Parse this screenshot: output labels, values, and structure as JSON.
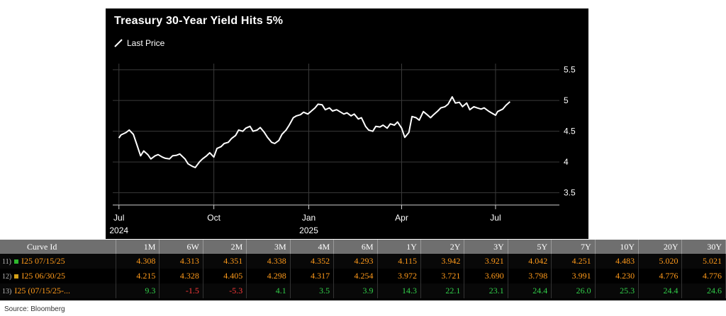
{
  "chart_data": {
    "type": "line",
    "title": "Treasury 30-Year Yield Hits 5%",
    "series": [
      {
        "name": "Last Price",
        "color": "#ffffff",
        "x": [
          "2024-07-01",
          "2024-07-03",
          "2024-07-08",
          "2024-07-11",
          "2024-07-15",
          "2024-07-18",
          "2024-07-22",
          "2024-07-25",
          "2024-07-29",
          "2024-08-01",
          "2024-08-05",
          "2024-08-08",
          "2024-08-12",
          "2024-08-15",
          "2024-08-19",
          "2024-08-22",
          "2024-08-26",
          "2024-08-29",
          "2024-09-03",
          "2024-09-06",
          "2024-09-10",
          "2024-09-13",
          "2024-09-17",
          "2024-09-20",
          "2024-09-24",
          "2024-09-27",
          "2024-10-01",
          "2024-10-04",
          "2024-10-08",
          "2024-10-11",
          "2024-10-15",
          "2024-10-18",
          "2024-10-22",
          "2024-10-25",
          "2024-10-29",
          "2024-11-01",
          "2024-11-05",
          "2024-11-08",
          "2024-11-12",
          "2024-11-15",
          "2024-11-19",
          "2024-11-22",
          "2024-11-26",
          "2024-11-29",
          "2024-12-03",
          "2024-12-06",
          "2024-12-10",
          "2024-12-13",
          "2024-12-17",
          "2024-12-20",
          "2024-12-24",
          "2024-12-27",
          "2024-12-31",
          "2025-01-03",
          "2025-01-07",
          "2025-01-10",
          "2025-01-14",
          "2025-01-17",
          "2025-01-21",
          "2025-01-24",
          "2025-01-28",
          "2025-01-31",
          "2025-02-04",
          "2025-02-07",
          "2025-02-11",
          "2025-02-14",
          "2025-02-18",
          "2025-02-21",
          "2025-02-25",
          "2025-02-28",
          "2025-03-04",
          "2025-03-07",
          "2025-03-11",
          "2025-03-14",
          "2025-03-18",
          "2025-03-21",
          "2025-03-25",
          "2025-03-28",
          "2025-04-01",
          "2025-04-04",
          "2025-04-08",
          "2025-04-11",
          "2025-04-15",
          "2025-04-18",
          "2025-04-22",
          "2025-04-25",
          "2025-04-29",
          "2025-05-02",
          "2025-05-06",
          "2025-05-09",
          "2025-05-13",
          "2025-05-16",
          "2025-05-20",
          "2025-05-23",
          "2025-05-27",
          "2025-05-30",
          "2025-06-03",
          "2025-06-06",
          "2025-06-10",
          "2025-06-13",
          "2025-06-17",
          "2025-06-20",
          "2025-06-24",
          "2025-06-27",
          "2025-07-01",
          "2025-07-03",
          "2025-07-08",
          "2025-07-11",
          "2025-07-15"
        ],
        "values": [
          4.39,
          4.44,
          4.48,
          4.52,
          4.45,
          4.3,
          4.1,
          4.18,
          4.12,
          4.05,
          4.1,
          4.12,
          4.08,
          4.06,
          4.05,
          4.1,
          4.11,
          4.13,
          4.05,
          3.97,
          3.93,
          3.91,
          4.0,
          4.05,
          4.1,
          4.15,
          4.08,
          4.22,
          4.25,
          4.3,
          4.32,
          4.38,
          4.43,
          4.52,
          4.5,
          4.55,
          4.58,
          4.5,
          4.52,
          4.56,
          4.48,
          4.4,
          4.32,
          4.3,
          4.35,
          4.45,
          4.52,
          4.6,
          4.72,
          4.75,
          4.77,
          4.81,
          4.78,
          4.82,
          4.88,
          4.94,
          4.93,
          4.85,
          4.88,
          4.83,
          4.85,
          4.82,
          4.78,
          4.8,
          4.75,
          4.78,
          4.7,
          4.72,
          4.58,
          4.52,
          4.5,
          4.58,
          4.57,
          4.6,
          4.55,
          4.62,
          4.6,
          4.65,
          4.55,
          4.4,
          4.48,
          4.74,
          4.72,
          4.68,
          4.82,
          4.78,
          4.72,
          4.77,
          4.83,
          4.88,
          4.9,
          4.94,
          5.06,
          4.96,
          4.97,
          4.9,
          4.96,
          4.85,
          4.9,
          4.88,
          4.86,
          4.88,
          4.83,
          4.8,
          4.76,
          4.82,
          4.86,
          4.92,
          4.98
        ]
      }
    ],
    "ylim": [
      3.3,
      5.6
    ],
    "yticks": [
      3.5,
      4,
      4.5,
      5,
      5.5
    ],
    "y_axis_position": "right",
    "xticks": [
      {
        "date": "2024-07-01",
        "label": "Jul",
        "year": "2024"
      },
      {
        "date": "2024-10-01",
        "label": "Oct",
        "year": ""
      },
      {
        "date": "2025-01-01",
        "label": "Jan",
        "year": "2025"
      },
      {
        "date": "2025-04-01",
        "label": "Apr",
        "year": ""
      },
      {
        "date": "2025-07-01",
        "label": "Jul",
        "year": ""
      }
    ],
    "xlim": [
      "2024-06-25",
      "2025-08-25"
    ],
    "grid": true,
    "legend": "top-left",
    "background": "#000000"
  },
  "curve_table": {
    "columns": [
      "Curve Id",
      "1M",
      "6W",
      "2M",
      "3M",
      "4M",
      "6M",
      "1Y",
      "2Y",
      "3Y",
      "5Y",
      "7Y",
      "10Y",
      "20Y",
      "30Y"
    ],
    "rows": [
      {
        "num": "11)",
        "marker_color": "#2eb82e",
        "id": "I25 07/15/25",
        "values": [
          "4.308",
          "4.313",
          "4.351",
          "4.338",
          "4.352",
          "4.293",
          "4.115",
          "3.942",
          "3.921",
          "4.042",
          "4.251",
          "4.483",
          "5.020",
          "5.021"
        ],
        "signs": [
          "",
          "",
          "",
          "",
          "",
          "",
          "",
          "",
          "",
          "",
          "",
          "",
          "",
          ""
        ]
      },
      {
        "num": "12)",
        "marker_color": "#d4a017",
        "id": "I25 06/30/25",
        "values": [
          "4.215",
          "4.328",
          "4.405",
          "4.298",
          "4.317",
          "4.254",
          "3.972",
          "3.721",
          "3.690",
          "3.798",
          "3.991",
          "4.230",
          "4.776",
          "4.776"
        ],
        "signs": [
          "",
          "",
          "",
          "",
          "",
          "",
          "",
          "",
          "",
          "",
          "",
          "",
          "",
          ""
        ]
      },
      {
        "num": "13)",
        "marker_color": "",
        "id": "I25 (07/15/25-...",
        "values": [
          "9.3",
          "-1.5",
          "-5.3",
          "4.1",
          "3.5",
          "3.9",
          "14.3",
          "22.1",
          "23.1",
          "24.4",
          "26.0",
          "25.3",
          "24.4",
          "24.6"
        ],
        "signs": [
          "pos",
          "neg",
          "neg",
          "pos",
          "pos",
          "pos",
          "pos",
          "pos",
          "pos",
          "pos",
          "pos",
          "pos",
          "pos",
          "pos"
        ]
      }
    ]
  },
  "source": "Source: Bloomberg"
}
